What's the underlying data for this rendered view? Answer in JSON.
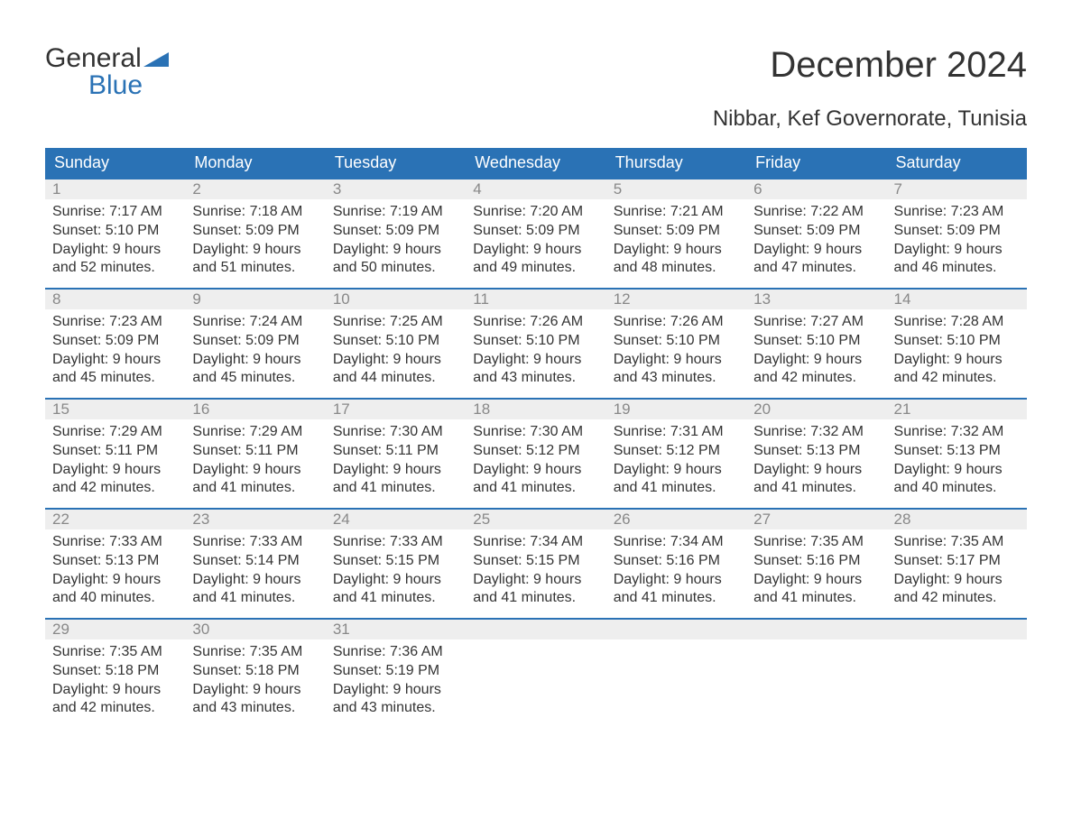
{
  "logo": {
    "general": "General",
    "blue": "Blue",
    "flag_color": "#2a72b5"
  },
  "title": "December 2024",
  "subtitle": "Nibbar, Kef Governorate, Tunisia",
  "colors": {
    "header_bg": "#2a72b5",
    "header_text": "#ffffff",
    "date_bg": "#eeeeee",
    "date_text": "#888888",
    "body_text": "#333333",
    "week_border": "#2a72b5",
    "page_bg": "#ffffff"
  },
  "day_headers": [
    "Sunday",
    "Monday",
    "Tuesday",
    "Wednesday",
    "Thursday",
    "Friday",
    "Saturday"
  ],
  "weeks": [
    {
      "dates": [
        "1",
        "2",
        "3",
        "4",
        "5",
        "6",
        "7"
      ],
      "cells": [
        [
          "Sunrise: 7:17 AM",
          "Sunset: 5:10 PM",
          "Daylight: 9 hours",
          "and 52 minutes."
        ],
        [
          "Sunrise: 7:18 AM",
          "Sunset: 5:09 PM",
          "Daylight: 9 hours",
          "and 51 minutes."
        ],
        [
          "Sunrise: 7:19 AM",
          "Sunset: 5:09 PM",
          "Daylight: 9 hours",
          "and 50 minutes."
        ],
        [
          "Sunrise: 7:20 AM",
          "Sunset: 5:09 PM",
          "Daylight: 9 hours",
          "and 49 minutes."
        ],
        [
          "Sunrise: 7:21 AM",
          "Sunset: 5:09 PM",
          "Daylight: 9 hours",
          "and 48 minutes."
        ],
        [
          "Sunrise: 7:22 AM",
          "Sunset: 5:09 PM",
          "Daylight: 9 hours",
          "and 47 minutes."
        ],
        [
          "Sunrise: 7:23 AM",
          "Sunset: 5:09 PM",
          "Daylight: 9 hours",
          "and 46 minutes."
        ]
      ]
    },
    {
      "dates": [
        "8",
        "9",
        "10",
        "11",
        "12",
        "13",
        "14"
      ],
      "cells": [
        [
          "Sunrise: 7:23 AM",
          "Sunset: 5:09 PM",
          "Daylight: 9 hours",
          "and 45 minutes."
        ],
        [
          "Sunrise: 7:24 AM",
          "Sunset: 5:09 PM",
          "Daylight: 9 hours",
          "and 45 minutes."
        ],
        [
          "Sunrise: 7:25 AM",
          "Sunset: 5:10 PM",
          "Daylight: 9 hours",
          "and 44 minutes."
        ],
        [
          "Sunrise: 7:26 AM",
          "Sunset: 5:10 PM",
          "Daylight: 9 hours",
          "and 43 minutes."
        ],
        [
          "Sunrise: 7:26 AM",
          "Sunset: 5:10 PM",
          "Daylight: 9 hours",
          "and 43 minutes."
        ],
        [
          "Sunrise: 7:27 AM",
          "Sunset: 5:10 PM",
          "Daylight: 9 hours",
          "and 42 minutes."
        ],
        [
          "Sunrise: 7:28 AM",
          "Sunset: 5:10 PM",
          "Daylight: 9 hours",
          "and 42 minutes."
        ]
      ]
    },
    {
      "dates": [
        "15",
        "16",
        "17",
        "18",
        "19",
        "20",
        "21"
      ],
      "cells": [
        [
          "Sunrise: 7:29 AM",
          "Sunset: 5:11 PM",
          "Daylight: 9 hours",
          "and 42 minutes."
        ],
        [
          "Sunrise: 7:29 AM",
          "Sunset: 5:11 PM",
          "Daylight: 9 hours",
          "and 41 minutes."
        ],
        [
          "Sunrise: 7:30 AM",
          "Sunset: 5:11 PM",
          "Daylight: 9 hours",
          "and 41 minutes."
        ],
        [
          "Sunrise: 7:30 AM",
          "Sunset: 5:12 PM",
          "Daylight: 9 hours",
          "and 41 minutes."
        ],
        [
          "Sunrise: 7:31 AM",
          "Sunset: 5:12 PM",
          "Daylight: 9 hours",
          "and 41 minutes."
        ],
        [
          "Sunrise: 7:32 AM",
          "Sunset: 5:13 PM",
          "Daylight: 9 hours",
          "and 41 minutes."
        ],
        [
          "Sunrise: 7:32 AM",
          "Sunset: 5:13 PM",
          "Daylight: 9 hours",
          "and 40 minutes."
        ]
      ]
    },
    {
      "dates": [
        "22",
        "23",
        "24",
        "25",
        "26",
        "27",
        "28"
      ],
      "cells": [
        [
          "Sunrise: 7:33 AM",
          "Sunset: 5:13 PM",
          "Daylight: 9 hours",
          "and 40 minutes."
        ],
        [
          "Sunrise: 7:33 AM",
          "Sunset: 5:14 PM",
          "Daylight: 9 hours",
          "and 41 minutes."
        ],
        [
          "Sunrise: 7:33 AM",
          "Sunset: 5:15 PM",
          "Daylight: 9 hours",
          "and 41 minutes."
        ],
        [
          "Sunrise: 7:34 AM",
          "Sunset: 5:15 PM",
          "Daylight: 9 hours",
          "and 41 minutes."
        ],
        [
          "Sunrise: 7:34 AM",
          "Sunset: 5:16 PM",
          "Daylight: 9 hours",
          "and 41 minutes."
        ],
        [
          "Sunrise: 7:35 AM",
          "Sunset: 5:16 PM",
          "Daylight: 9 hours",
          "and 41 minutes."
        ],
        [
          "Sunrise: 7:35 AM",
          "Sunset: 5:17 PM",
          "Daylight: 9 hours",
          "and 42 minutes."
        ]
      ]
    },
    {
      "dates": [
        "29",
        "30",
        "31",
        "",
        "",
        "",
        ""
      ],
      "cells": [
        [
          "Sunrise: 7:35 AM",
          "Sunset: 5:18 PM",
          "Daylight: 9 hours",
          "and 42 minutes."
        ],
        [
          "Sunrise: 7:35 AM",
          "Sunset: 5:18 PM",
          "Daylight: 9 hours",
          "and 43 minutes."
        ],
        [
          "Sunrise: 7:36 AM",
          "Sunset: 5:19 PM",
          "Daylight: 9 hours",
          "and 43 minutes."
        ],
        [],
        [],
        [],
        []
      ]
    }
  ]
}
